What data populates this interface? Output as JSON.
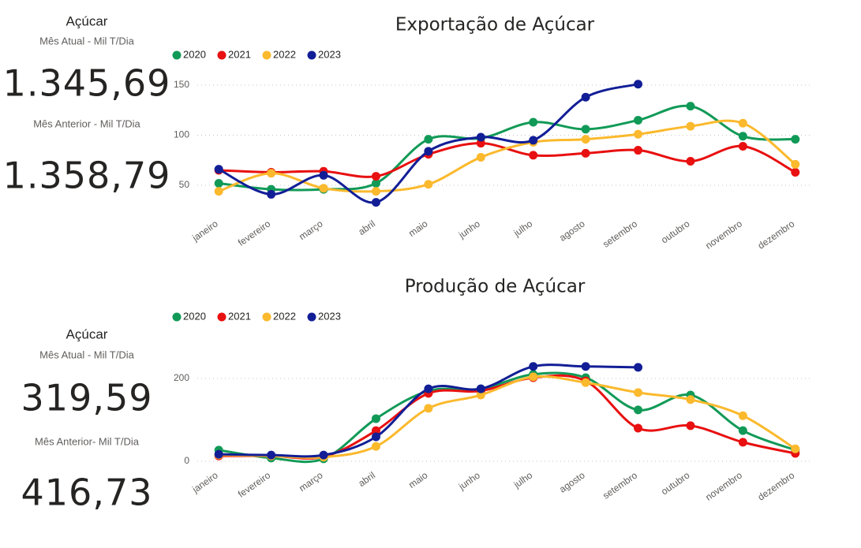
{
  "cards": [
    {
      "title": "Açúcar",
      "current_label": "Mês Atual - Mil T/Dia",
      "current_value": "1.345,69",
      "previous_label": "Mês Anterior - Mil T/Dia",
      "previous_value": "1.358,79"
    },
    {
      "title": "Açúcar",
      "current_label": "Mês Atual - Mil T/Dia",
      "current_value": "319,59",
      "previous_label": "Mês Anterior- Mil T/Dia",
      "previous_value": "416,73"
    }
  ],
  "chart_data": [
    {
      "type": "line",
      "title": "Exportação de Açúcar",
      "categories": [
        "janeiro",
        "fevereiro",
        "março",
        "abril",
        "maio",
        "junho",
        "julho",
        "agosto",
        "setembro",
        "outubro",
        "novembro",
        "dezembro"
      ],
      "series": [
        {
          "name": "2020",
          "color": "#119a57",
          "values": [
            52,
            46,
            46,
            52,
            96,
            97,
            113,
            106,
            115,
            129,
            99,
            96
          ]
        },
        {
          "name": "2021",
          "color": "#e81010",
          "values": [
            65,
            63,
            64,
            59,
            81,
            92,
            80,
            82,
            85,
            74,
            89,
            63
          ]
        },
        {
          "name": "2022",
          "color": "#fbb92d",
          "values": [
            44,
            62,
            47,
            44,
            51,
            78,
            93,
            96,
            101,
            109,
            112,
            71
          ]
        },
        {
          "name": "2023",
          "color": "#121e96",
          "values": [
            66,
            41,
            60,
            33,
            84,
            98,
            95,
            138,
            151,
            null,
            null,
            null
          ]
        }
      ],
      "ylim": [
        25,
        160
      ],
      "yticks": [
        50,
        100,
        150
      ],
      "grid": true,
      "legend": "top-left"
    },
    {
      "type": "line",
      "title": "Produção de Açúcar",
      "categories": [
        "janeiro",
        "fevereiro",
        "março",
        "abril",
        "maio",
        "junho",
        "julho",
        "agosto",
        "setembro",
        "outubro",
        "novembro",
        "dezembro"
      ],
      "series": [
        {
          "name": "2020",
          "color": "#119a57",
          "values": [
            27,
            8,
            6,
            103,
            170,
            175,
            210,
            202,
            124,
            160,
            74,
            27
          ]
        },
        {
          "name": "2021",
          "color": "#e81010",
          "values": [
            13,
            13,
            11,
            74,
            164,
            170,
            202,
            194,
            80,
            86,
            46,
            19
          ]
        },
        {
          "name": "2022",
          "color": "#fbb92d",
          "values": [
            15,
            13,
            10,
            36,
            128,
            160,
            204,
            190,
            166,
            149,
            110,
            30
          ]
        },
        {
          "name": "2023",
          "color": "#121e96",
          "values": [
            17,
            15,
            15,
            59,
            175,
            175,
            229,
            229,
            227,
            null,
            null,
            null
          ]
        }
      ],
      "ylim": [
        -15,
        300
      ],
      "yticks": [
        0,
        200
      ],
      "grid": true,
      "legend": "top-left"
    }
  ]
}
